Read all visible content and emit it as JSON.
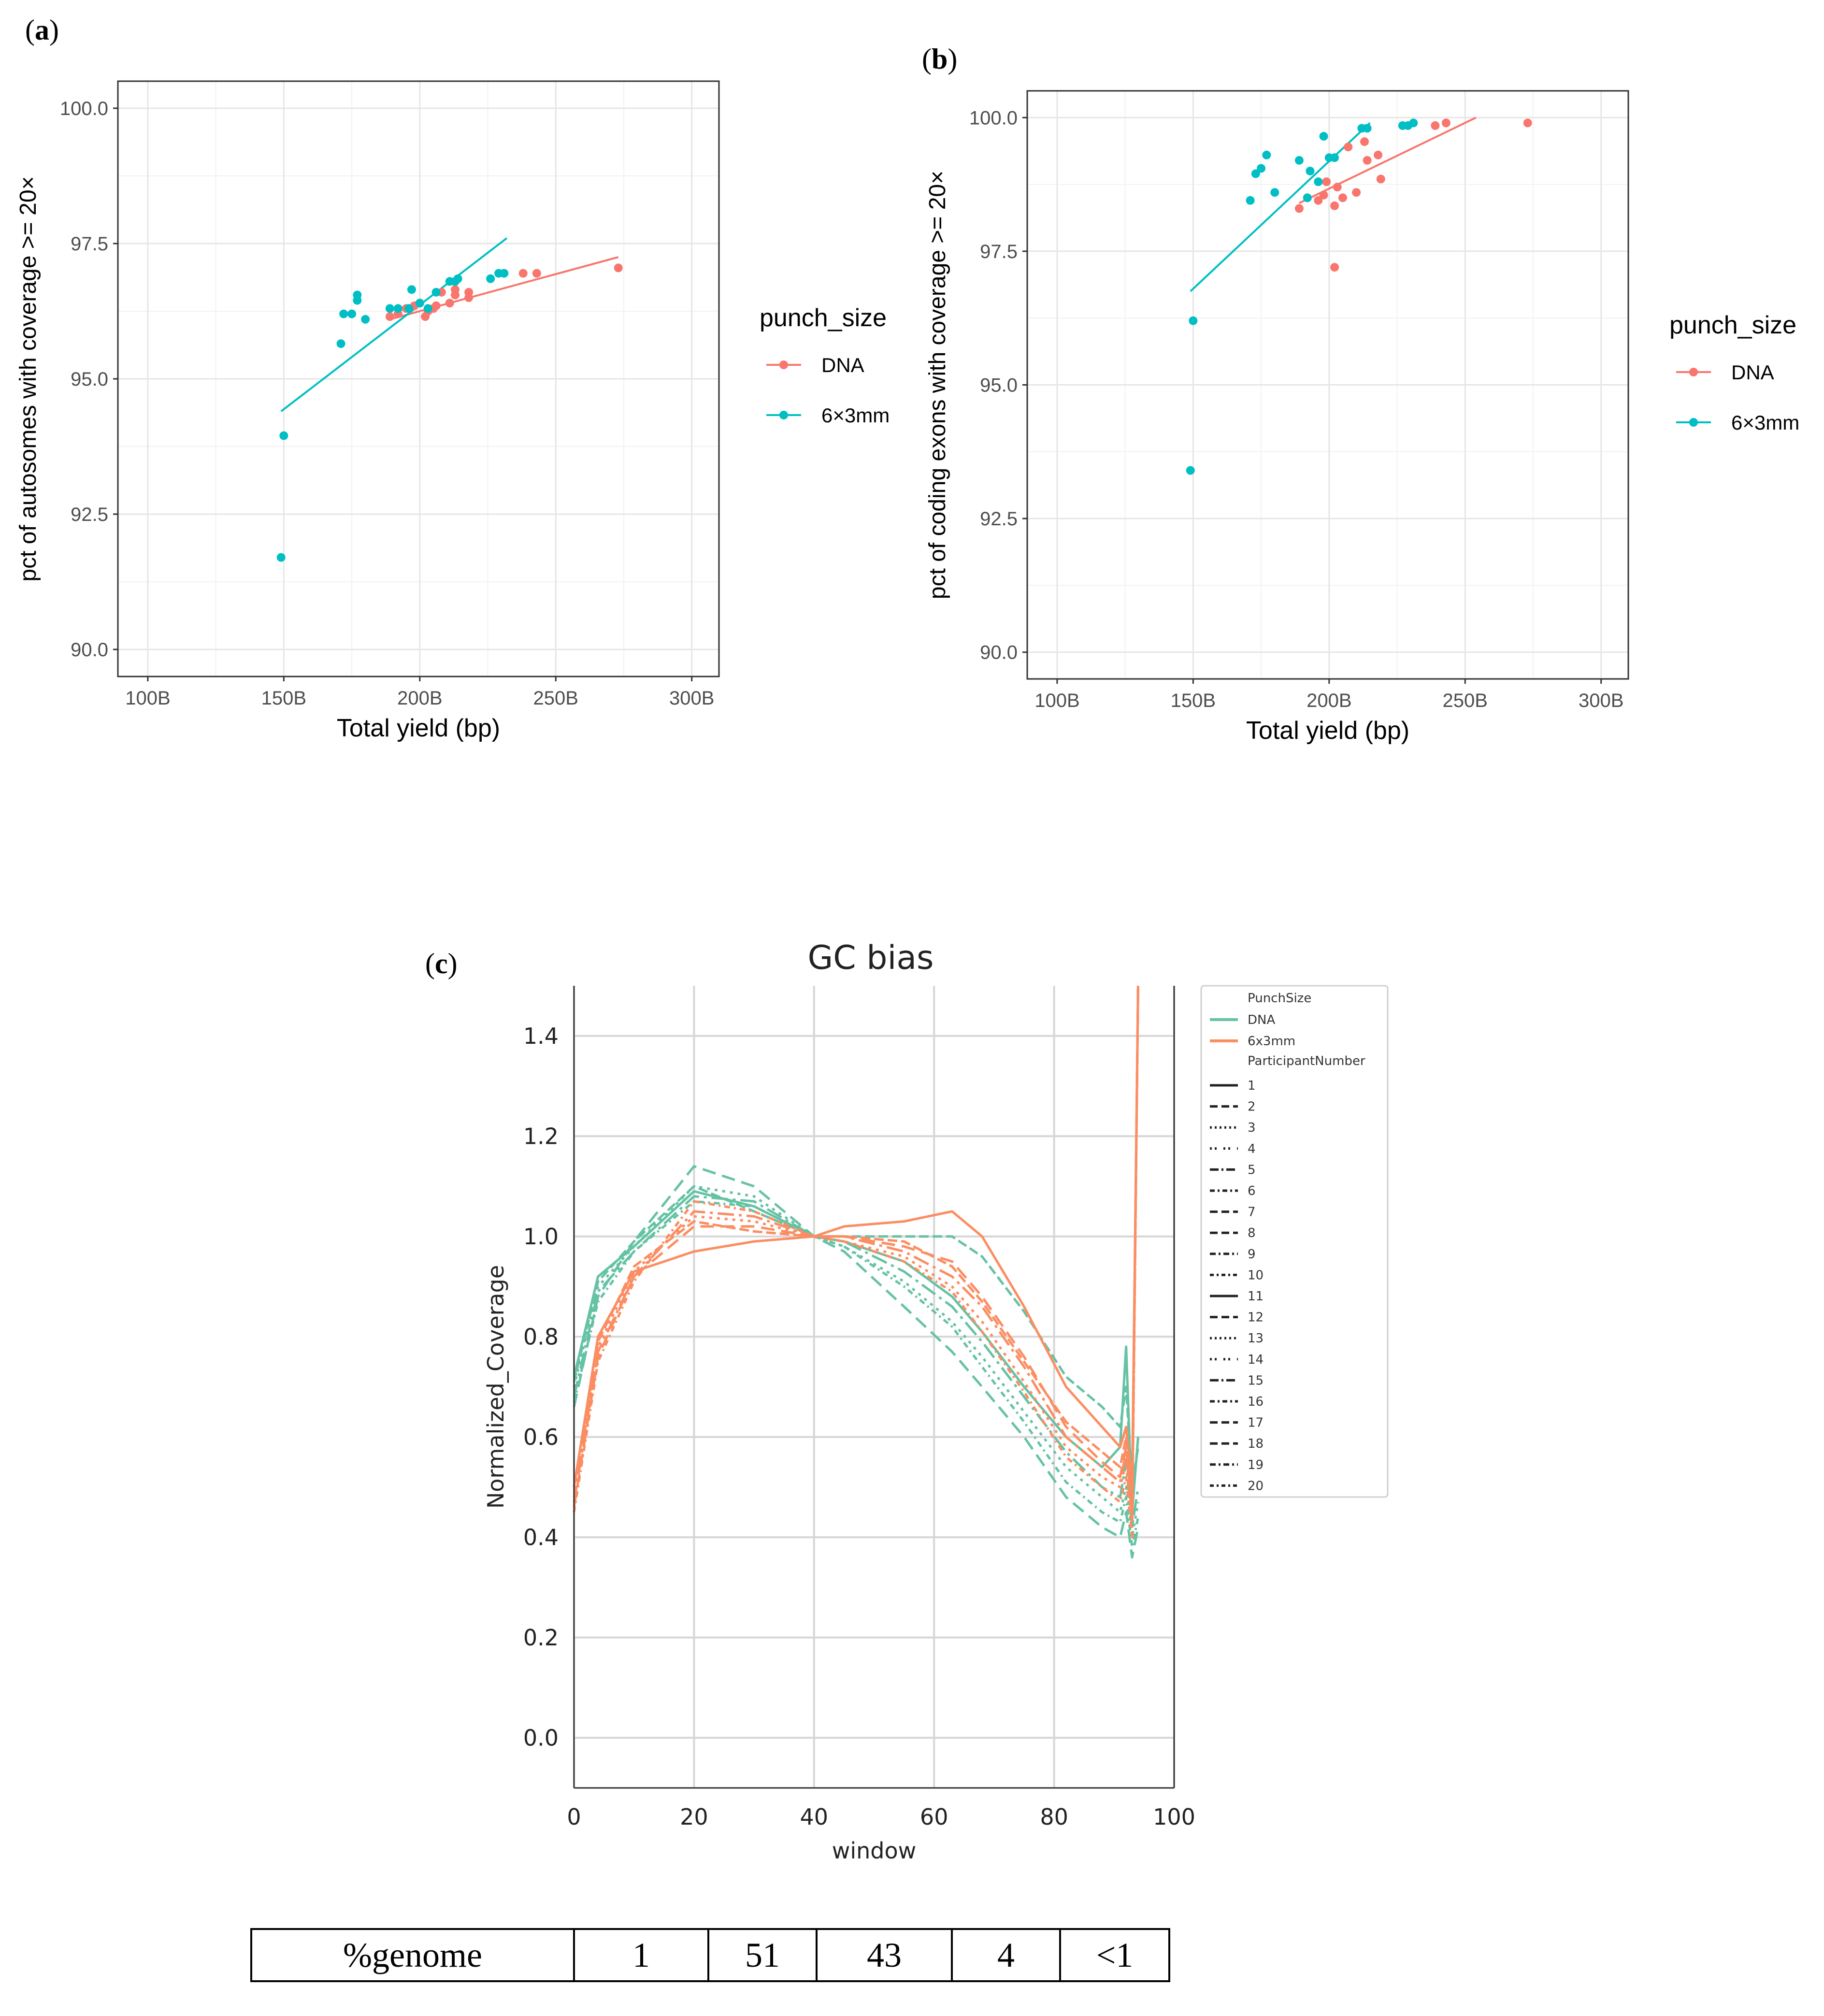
{
  "panels": {
    "a": {
      "label_open": "(",
      "label_letter": "a",
      "label_close": ")"
    },
    "b": {
      "label_open": "(",
      "label_letter": "b",
      "label_close": ")"
    },
    "c": {
      "label_open": "(",
      "label_letter": "c",
      "label_close": ")"
    }
  },
  "colors": {
    "dna_scatter": "#F8766D",
    "punch_scatter": "#00BFC4",
    "dna_gc": "#66C2A5",
    "punch_gc": "#FC8D62"
  },
  "chart_data": [
    {
      "id": "a",
      "type": "scatter",
      "title": "",
      "xlabel": "Total yield (bp)",
      "ylabel": "pct of autosomes with coverage >= 20×",
      "xlim": [
        89,
        310
      ],
      "ylim": [
        89.5,
        100.5
      ],
      "x_ticks": [
        100,
        150,
        200,
        250,
        300
      ],
      "x_tick_labels": [
        "100B",
        "150B",
        "200B",
        "250B",
        "300B"
      ],
      "y_ticks": [
        90,
        92.5,
        95,
        97.5,
        100
      ],
      "y_tick_labels": [
        "90.0",
        "92.5",
        "95.0",
        "97.5",
        "100.0"
      ],
      "legend": {
        "title": "punch_size",
        "entries": [
          "DNA",
          "6×3mm"
        ],
        "position": "right"
      },
      "series": [
        {
          "name": "DNA",
          "color": "#F8766D",
          "points": [
            [
              189,
              96.15
            ],
            [
              192,
              96.2
            ],
            [
              195,
              96.3
            ],
            [
              198,
              96.35
            ],
            [
              200,
              96.4
            ],
            [
              202,
              96.15
            ],
            [
              203,
              96.25
            ],
            [
              205,
              96.3
            ],
            [
              206,
              96.35
            ],
            [
              208,
              96.6
            ],
            [
              211,
              96.4
            ],
            [
              213,
              96.65
            ],
            [
              213,
              96.55
            ],
            [
              218,
              96.6
            ],
            [
              218,
              96.5
            ],
            [
              238,
              96.95
            ],
            [
              243,
              96.95
            ],
            [
              273,
              97.05
            ]
          ],
          "fit": [
            [
              189,
              96.1
            ],
            [
              273,
              97.25
            ]
          ]
        },
        {
          "name": "6×3mm",
          "color": "#00BFC4",
          "points": [
            [
              149,
              91.7
            ],
            [
              150,
              93.95
            ],
            [
              171,
              95.65
            ],
            [
              172,
              96.2
            ],
            [
              175,
              96.2
            ],
            [
              177,
              96.55
            ],
            [
              177,
              96.45
            ],
            [
              180,
              96.1
            ],
            [
              189,
              96.3
            ],
            [
              192,
              96.3
            ],
            [
              196,
              96.3
            ],
            [
              197,
              96.65
            ],
            [
              200,
              96.4
            ],
            [
              203,
              96.3
            ],
            [
              206,
              96.6
            ],
            [
              211,
              96.8
            ],
            [
              213,
              96.8
            ],
            [
              214,
              96.85
            ],
            [
              226,
              96.85
            ],
            [
              229,
              96.95
            ],
            [
              231,
              96.95
            ]
          ],
          "fit": [
            [
              149,
              94.4
            ],
            [
              232,
              97.6
            ]
          ]
        }
      ]
    },
    {
      "id": "b",
      "type": "scatter",
      "title": "",
      "xlabel": "Total yield (bp)",
      "ylabel": "pct of coding exons with coverage >= 20×",
      "xlim": [
        89,
        310
      ],
      "ylim": [
        89.5,
        100.5
      ],
      "x_ticks": [
        100,
        150,
        200,
        250,
        300
      ],
      "x_tick_labels": [
        "100B",
        "150B",
        "200B",
        "250B",
        "300B"
      ],
      "y_ticks": [
        90,
        92.5,
        95,
        97.5,
        100
      ],
      "y_tick_labels": [
        "90.0",
        "92.5",
        "95.0",
        "97.5",
        "100.0"
      ],
      "legend": {
        "title": "punch_size",
        "entries": [
          "DNA",
          "6×3mm"
        ],
        "position": "right"
      },
      "series": [
        {
          "name": "DNA",
          "color": "#F8766D",
          "points": [
            [
              189,
              98.3
            ],
            [
              192,
              98.5
            ],
            [
              196,
              98.45
            ],
            [
              198,
              98.55
            ],
            [
              199,
              98.8
            ],
            [
              202,
              97.2
            ],
            [
              202,
              98.35
            ],
            [
              203,
              98.7
            ],
            [
              205,
              98.5
            ],
            [
              207,
              99.45
            ],
            [
              210,
              98.6
            ],
            [
              213,
              99.55
            ],
            [
              214,
              99.2
            ],
            [
              218,
              99.3
            ],
            [
              219,
              98.85
            ],
            [
              239,
              99.85
            ],
            [
              243,
              99.9
            ],
            [
              273,
              99.9
            ]
          ],
          "fit": [
            [
              189,
              98.4
            ],
            [
              254,
              100.0
            ]
          ]
        },
        {
          "name": "6×3mm",
          "color": "#00BFC4",
          "points": [
            [
              149,
              93.4
            ],
            [
              150,
              96.2
            ],
            [
              171,
              98.45
            ],
            [
              173,
              98.95
            ],
            [
              175,
              99.05
            ],
            [
              177,
              99.3
            ],
            [
              180,
              98.6
            ],
            [
              189,
              99.2
            ],
            [
              192,
              98.5
            ],
            [
              193,
              99.0
            ],
            [
              196,
              98.8
            ],
            [
              198,
              99.65
            ],
            [
              200,
              99.25
            ],
            [
              202,
              99.25
            ],
            [
              212,
              99.8
            ],
            [
              214,
              99.8
            ],
            [
              227,
              99.85
            ],
            [
              229,
              99.85
            ],
            [
              231,
              99.9
            ]
          ],
          "fit": [
            [
              149,
              96.75
            ],
            [
              215,
              99.9
            ]
          ]
        }
      ]
    },
    {
      "id": "c",
      "type": "line",
      "title": "GC bias",
      "xlabel": "window",
      "ylabel": "Normalized_Coverage",
      "xlim": [
        0,
        100
      ],
      "ylim": [
        -0.1,
        1.5
      ],
      "x_ticks": [
        0,
        20,
        40,
        60,
        80,
        100
      ],
      "x_tick_labels": [
        "0",
        "20",
        "40",
        "60",
        "80",
        "100"
      ],
      "y_ticks": [
        0.0,
        0.2,
        0.4,
        0.6,
        0.8,
        1.0,
        1.2,
        1.4
      ],
      "y_tick_labels": [
        "0.0",
        "0.2",
        "0.4",
        "0.6",
        "0.8",
        "1.0",
        "1.2",
        "1.4"
      ],
      "grid": true,
      "legend": {
        "title_fill": "PunchSize",
        "fill_entries": [
          "DNA",
          "6x3mm"
        ],
        "title_linetype": "ParticipantNumber",
        "linetype_entries": [
          "1",
          "2",
          "3",
          "4",
          "5",
          "6",
          "7",
          "8",
          "9",
          "10",
          "11",
          "12",
          "13",
          "14",
          "15",
          "16",
          "17",
          "18",
          "19",
          "20"
        ],
        "position": "right"
      },
      "x": [
        0,
        4,
        10,
        20,
        30,
        40,
        45,
        55,
        63,
        68,
        75,
        82,
        88,
        91,
        92,
        93,
        94
      ],
      "series": [
        {
          "name": "DNA",
          "participant": "1",
          "color": "#66C2A5",
          "values": [
            0.72,
            0.92,
            0.98,
            1.09,
            1.06,
            1.0,
            0.99,
            0.95,
            0.88,
            0.81,
            0.7,
            0.6,
            0.54,
            0.58,
            0.78,
            0.45,
            0.6
          ]
        },
        {
          "name": "DNA",
          "participant": "2",
          "color": "#66C2A5",
          "values": [
            0.66,
            0.88,
            0.99,
            1.14,
            1.1,
            1.0,
            0.97,
            0.86,
            0.77,
            0.7,
            0.6,
            0.48,
            0.42,
            0.4,
            0.45,
            0.36,
            0.42
          ]
        },
        {
          "name": "DNA",
          "participant": "3",
          "color": "#66C2A5",
          "values": [
            0.7,
            0.9,
            0.98,
            1.1,
            1.08,
            1.0,
            0.98,
            0.91,
            0.83,
            0.76,
            0.65,
            0.54,
            0.48,
            0.45,
            0.5,
            0.4,
            0.47
          ]
        },
        {
          "name": "DNA",
          "participant": "4",
          "color": "#66C2A5",
          "values": [
            0.68,
            0.89,
            0.97,
            1.08,
            1.07,
            1.0,
            0.99,
            0.93,
            0.86,
            0.79,
            0.68,
            0.57,
            0.5,
            0.48,
            0.55,
            0.42,
            0.5
          ]
        },
        {
          "name": "DNA",
          "participant": "5",
          "color": "#66C2A5",
          "values": [
            0.71,
            0.91,
            0.99,
            1.1,
            1.05,
            1.0,
            1.0,
            1.0,
            1.0,
            0.96,
            0.85,
            0.72,
            0.66,
            0.62,
            0.7,
            0.5,
            0.58
          ]
        },
        {
          "name": "DNA",
          "participant": "6",
          "color": "#66C2A5",
          "values": [
            0.67,
            0.87,
            0.97,
            1.07,
            1.06,
            1.0,
            0.98,
            0.9,
            0.82,
            0.74,
            0.63,
            0.51,
            0.45,
            0.43,
            0.48,
            0.38,
            0.44
          ]
        },
        {
          "name": "6x3mm",
          "participant": "1",
          "color": "#FC8D62",
          "values": [
            0.5,
            0.8,
            0.93,
            0.97,
            0.99,
            1.0,
            1.02,
            1.03,
            1.05,
            1.0,
            0.86,
            0.7,
            0.62,
            0.58,
            0.62,
            0.5,
            1.5
          ]
        },
        {
          "name": "6x3mm",
          "participant": "2",
          "color": "#FC8D62",
          "values": [
            0.46,
            0.76,
            0.92,
            1.02,
            1.02,
            1.0,
            1.0,
            0.98,
            0.95,
            0.88,
            0.76,
            0.62,
            0.55,
            0.52,
            0.58,
            0.45,
            1.5
          ]
        },
        {
          "name": "6x3mm",
          "participant": "3",
          "color": "#FC8D62",
          "values": [
            0.48,
            0.78,
            0.93,
            1.04,
            1.03,
            1.0,
            0.99,
            0.96,
            0.9,
            0.83,
            0.71,
            0.58,
            0.52,
            0.5,
            0.55,
            0.43,
            1.5
          ]
        },
        {
          "name": "6x3mm",
          "participant": "4",
          "color": "#FC8D62",
          "values": [
            0.47,
            0.77,
            0.92,
            1.05,
            1.04,
            1.0,
            1.0,
            0.97,
            0.92,
            0.86,
            0.74,
            0.6,
            0.54,
            0.51,
            0.57,
            0.44,
            1.5
          ]
        },
        {
          "name": "6x3mm",
          "participant": "5",
          "color": "#FC8D62",
          "values": [
            0.5,
            0.79,
            0.94,
            1.03,
            1.01,
            1.0,
            1.0,
            0.99,
            0.94,
            0.87,
            0.75,
            0.63,
            0.57,
            0.54,
            0.6,
            0.46,
            1.5
          ]
        },
        {
          "name": "6x3mm",
          "participant": "6",
          "color": "#FC8D62",
          "values": [
            0.45,
            0.75,
            0.91,
            1.07,
            1.05,
            1.0,
            0.99,
            0.95,
            0.89,
            0.81,
            0.69,
            0.56,
            0.5,
            0.47,
            0.52,
            0.4,
            1.5
          ]
        }
      ]
    }
  ],
  "genome_table": {
    "header": "%genome",
    "values": [
      "1",
      "51",
      "43",
      "4",
      "<1"
    ]
  }
}
